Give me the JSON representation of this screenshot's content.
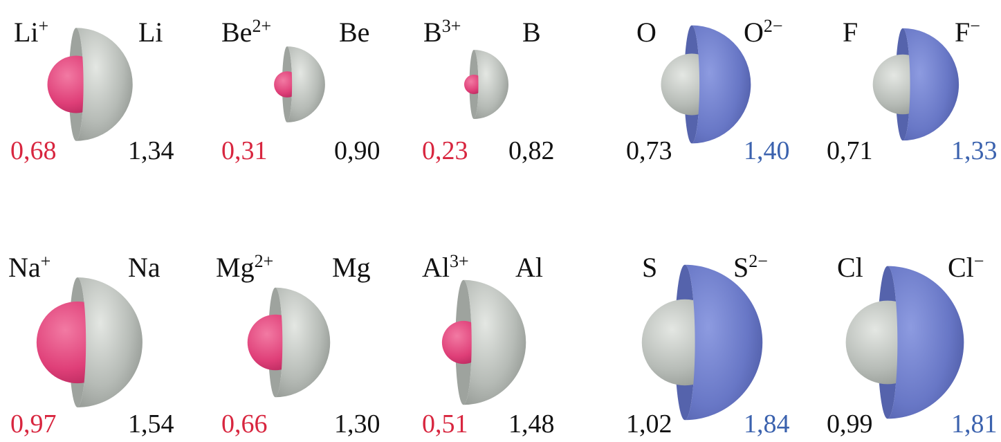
{
  "panels": [
    {
      "left": {
        "label": "Li",
        "sup": "+",
        "radius": "0,68"
      },
      "right": {
        "label": "Li",
        "radius": "1,34"
      }
    },
    {
      "left": {
        "label": "Be",
        "sup": "2+",
        "radius": "0,31"
      },
      "right": {
        "label": "Be",
        "radius": "0,90"
      }
    },
    {
      "left": {
        "label": "B",
        "sup": "3+",
        "radius": "0,23"
      },
      "right": {
        "label": "B",
        "radius": "0,82"
      }
    },
    {
      "left": {
        "label": "O",
        "radius": "0,73"
      },
      "right": {
        "label": "O",
        "sup": "2−",
        "radius": "1,40"
      }
    },
    {
      "left": {
        "label": "F",
        "radius": "0,71"
      },
      "right": {
        "label": "F",
        "sup": "−",
        "radius": "1,33"
      }
    },
    {
      "left": {
        "label": "Na",
        "sup": "+",
        "radius": "0,97"
      },
      "right": {
        "label": "Na",
        "radius": "1,54"
      }
    },
    {
      "left": {
        "label": "Mg",
        "sup": "2+",
        "radius": "0,66"
      },
      "right": {
        "label": "Mg",
        "radius": "1,30"
      }
    },
    {
      "left": {
        "label": "Al",
        "sup": "3+",
        "radius": "0,51"
      },
      "right": {
        "label": "Al",
        "radius": "1,48"
      }
    },
    {
      "left": {
        "label": "S",
        "radius": "1,02"
      },
      "right": {
        "label": "S",
        "sup": "2−",
        "radius": "1,84"
      }
    },
    {
      "left": {
        "label": "Cl",
        "radius": "0,99"
      },
      "right": {
        "label": "Cl",
        "sup": "−",
        "radius": "1,81"
      }
    }
  ]
}
